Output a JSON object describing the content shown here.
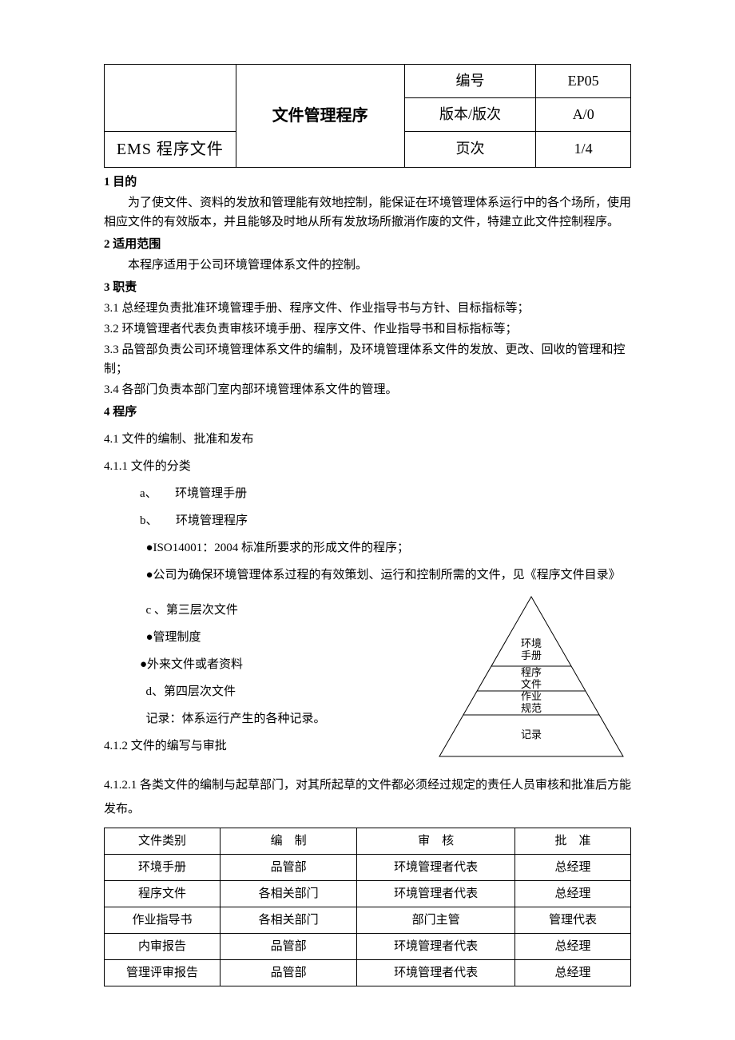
{
  "header": {
    "ems_label": "EMS 程序文件",
    "title": "文件管理程序",
    "rows": [
      {
        "label": "编号",
        "value": "EP05"
      },
      {
        "label": "版本/版次",
        "value": "A/0"
      },
      {
        "label": "页次",
        "value": "1/4"
      }
    ]
  },
  "s1": {
    "title": "1 目的",
    "body": "为了使文件、资料的发放和管理能有效地控制，能保证在环境管理体系运行中的各个场所，使用相应文件的有效版本，并且能够及时地从所有发放场所撤消作废的文件，特建立此文件控制程序。"
  },
  "s2": {
    "title": "2 适用范围",
    "body": "本程序适用于公司环境管理体系文件的控制。"
  },
  "s3": {
    "title": "3 职责",
    "items": [
      "3.1 总经理负责批准环境管理手册、程序文件、作业指导书与方针、目标指标等；",
      "3.2 环境管理者代表负责审核环境手册、程序文件、作业指导书和目标指标等；",
      "3.3 品管部负责公司环境管理体系文件的编制，及环境管理体系文件的发放、更改、回收的管理和控制；",
      "3.4 各部门负责本部门室内部环境管理体系文件的管理。"
    ]
  },
  "s4": {
    "title": "4 程序",
    "s41": "4.1 文件的编制、批准和发布",
    "s411": "4.1.1 文件的分类",
    "a": "a、　　环境管理手册",
    "b": "b、　　环境管理程序",
    "b1": "●ISO14001：2004 标准所要求的形成文件的程序；",
    "b2": "●公司为确保环境管理体系过程的有效策划、运行和控制所需的文件，见《程序文件目录》",
    "c": "c 、第三层次文件",
    "c1": "●管理制度",
    "c2": "●外来文件或者资料",
    "d": "d、第四层次文件",
    "d_note": "记录：体系运行产生的各种记录。",
    "s412": "4.1.2 文件的编写与审批",
    "s4121": "4.1.2.1 各类文件的编制与起草部门，对其所起草的文件都必须经过规定的责任人员审核和批准后方能发布。"
  },
  "pyramid": {
    "levels": [
      {
        "line1": "环境",
        "line2": "手册"
      },
      {
        "line1": "程序",
        "line2": "文件"
      },
      {
        "line1": "作业",
        "line2": "规范"
      },
      {
        "line1": "记录",
        "line2": ""
      }
    ],
    "stroke": "#000000",
    "fill": "#ffffff"
  },
  "docTable": {
    "headers": [
      "文件类别",
      "编　制",
      "审　核",
      "批　准"
    ],
    "rows": [
      [
        "环境手册",
        "品管部",
        "环境管理者代表",
        "总经理"
      ],
      [
        "程序文件",
        "各相关部门",
        "环境管理者代表",
        "总经理"
      ],
      [
        "作业指导书",
        "各相关部门",
        "部门主管",
        "管理代表"
      ],
      [
        "内审报告",
        "品管部",
        "环境管理者代表",
        "总经理"
      ],
      [
        "管理评审报告",
        "品管部",
        "环境管理者代表",
        "总经理"
      ]
    ],
    "col_widths": [
      "22%",
      "26%",
      "30%",
      "22%"
    ]
  }
}
